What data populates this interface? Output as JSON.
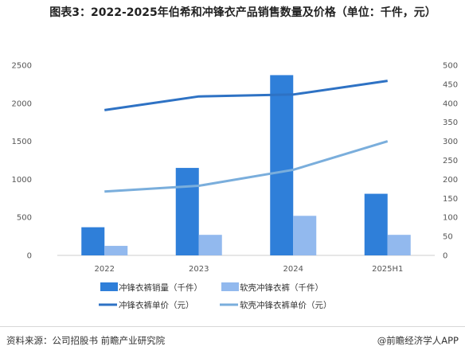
{
  "title": "图表3：2022-2025年伯希和冲锋衣产品销售数量及价格（单位：千件，元）",
  "footer": {
    "source": "资料来源：公司招股书  前瞻产业研究院",
    "brand": "@前瞻经济学人APP"
  },
  "colors": {
    "bar1": "#2f7fd9",
    "bar2": "#92b9ee",
    "line1": "#2e72c4",
    "line2": "#7aaedc"
  },
  "chart_data": {
    "type": "bar",
    "categories": [
      "2022",
      "2023",
      "2024",
      "2025H1"
    ],
    "left_axis": {
      "ylim": [
        0,
        2500
      ],
      "ticks": [
        0,
        500,
        1000,
        1500,
        2000,
        2500
      ]
    },
    "right_axis": {
      "ylim": [
        0,
        500
      ],
      "ticks": [
        0,
        50,
        100,
        150,
        200,
        250,
        300,
        350,
        400,
        450,
        500
      ]
    },
    "bar_series": [
      {
        "name": "冲锋衣裤销量（千件）",
        "axis": "left",
        "values": [
          370,
          1150,
          2370,
          810
        ]
      },
      {
        "name": "软壳冲锋衣裤（千件）",
        "axis": "left",
        "values": [
          125,
          270,
          520,
          270
        ]
      }
    ],
    "line_series": [
      {
        "name": "冲锋衣裤单价（元）",
        "axis": "right",
        "values": [
          382,
          418,
          423,
          459
        ]
      },
      {
        "name": "软壳冲锋衣裤单价（元）",
        "axis": "right",
        "values": [
          168,
          183,
          225,
          300
        ]
      }
    ],
    "grid": false,
    "legend_position": "bottom"
  }
}
